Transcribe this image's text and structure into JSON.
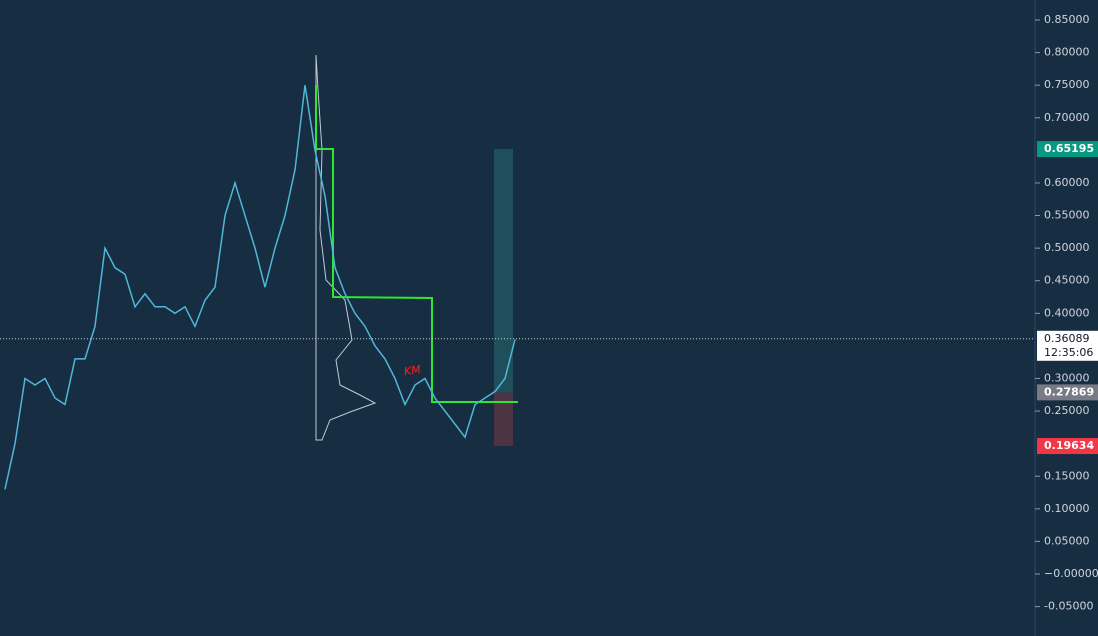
{
  "chart_data": {
    "type": "line",
    "color": "#4fb8d6",
    "background": "#162d42",
    "values": [
      0.13,
      0.2,
      0.3,
      0.29,
      0.3,
      0.27,
      0.26,
      0.33,
      0.33,
      0.38,
      0.5,
      0.47,
      0.46,
      0.41,
      0.43,
      0.41,
      0.41,
      0.4,
      0.41,
      0.38,
      0.42,
      0.44,
      0.55,
      0.6,
      0.55,
      0.5,
      0.44,
      0.5,
      0.55,
      0.62,
      0.75,
      0.65,
      0.58,
      0.47,
      0.43,
      0.4,
      0.38,
      0.35,
      0.33,
      0.3,
      0.26,
      0.29,
      0.3,
      0.27,
      0.25,
      0.23,
      0.21,
      0.26,
      0.27,
      0.28,
      0.3,
      0.36
    ],
    "ylim": [
      -0.0951,
      0.8807
    ],
    "yticks": [
      {
        "value": 0.85,
        "label": "0.85000"
      },
      {
        "value": 0.8,
        "label": "0.80000"
      },
      {
        "value": 0.75,
        "label": "0.75000"
      },
      {
        "value": 0.7,
        "label": "0.70000"
      },
      {
        "value": 0.6,
        "label": "0.60000"
      },
      {
        "value": 0.55,
        "label": "0.55000"
      },
      {
        "value": 0.5,
        "label": "0.50000"
      },
      {
        "value": 0.45,
        "label": "0.45000"
      },
      {
        "value": 0.4,
        "label": "0.40000"
      },
      {
        "value": 0.3,
        "label": "0.30000"
      },
      {
        "value": 0.25,
        "label": "0.25000"
      },
      {
        "value": 0.15,
        "label": "0.15000"
      },
      {
        "value": 0.1,
        "label": "0.10000"
      },
      {
        "value": 0.05,
        "label": "0.05000"
      },
      {
        "value": 0,
        "label": "−0.00000"
      },
      {
        "value": -0.05,
        "label": "-0.05000"
      }
    ],
    "price_markers": [
      {
        "price": 0.65195,
        "color": "#089981"
      },
      {
        "price": 0.36089,
        "color": "#ffffff"
      },
      {
        "price": 0.27869,
        "color": "#787b86"
      },
      {
        "price": 0.19634,
        "color": "#f23645"
      }
    ],
    "countdown": "12:35:06",
    "annotation": "KM"
  }
}
